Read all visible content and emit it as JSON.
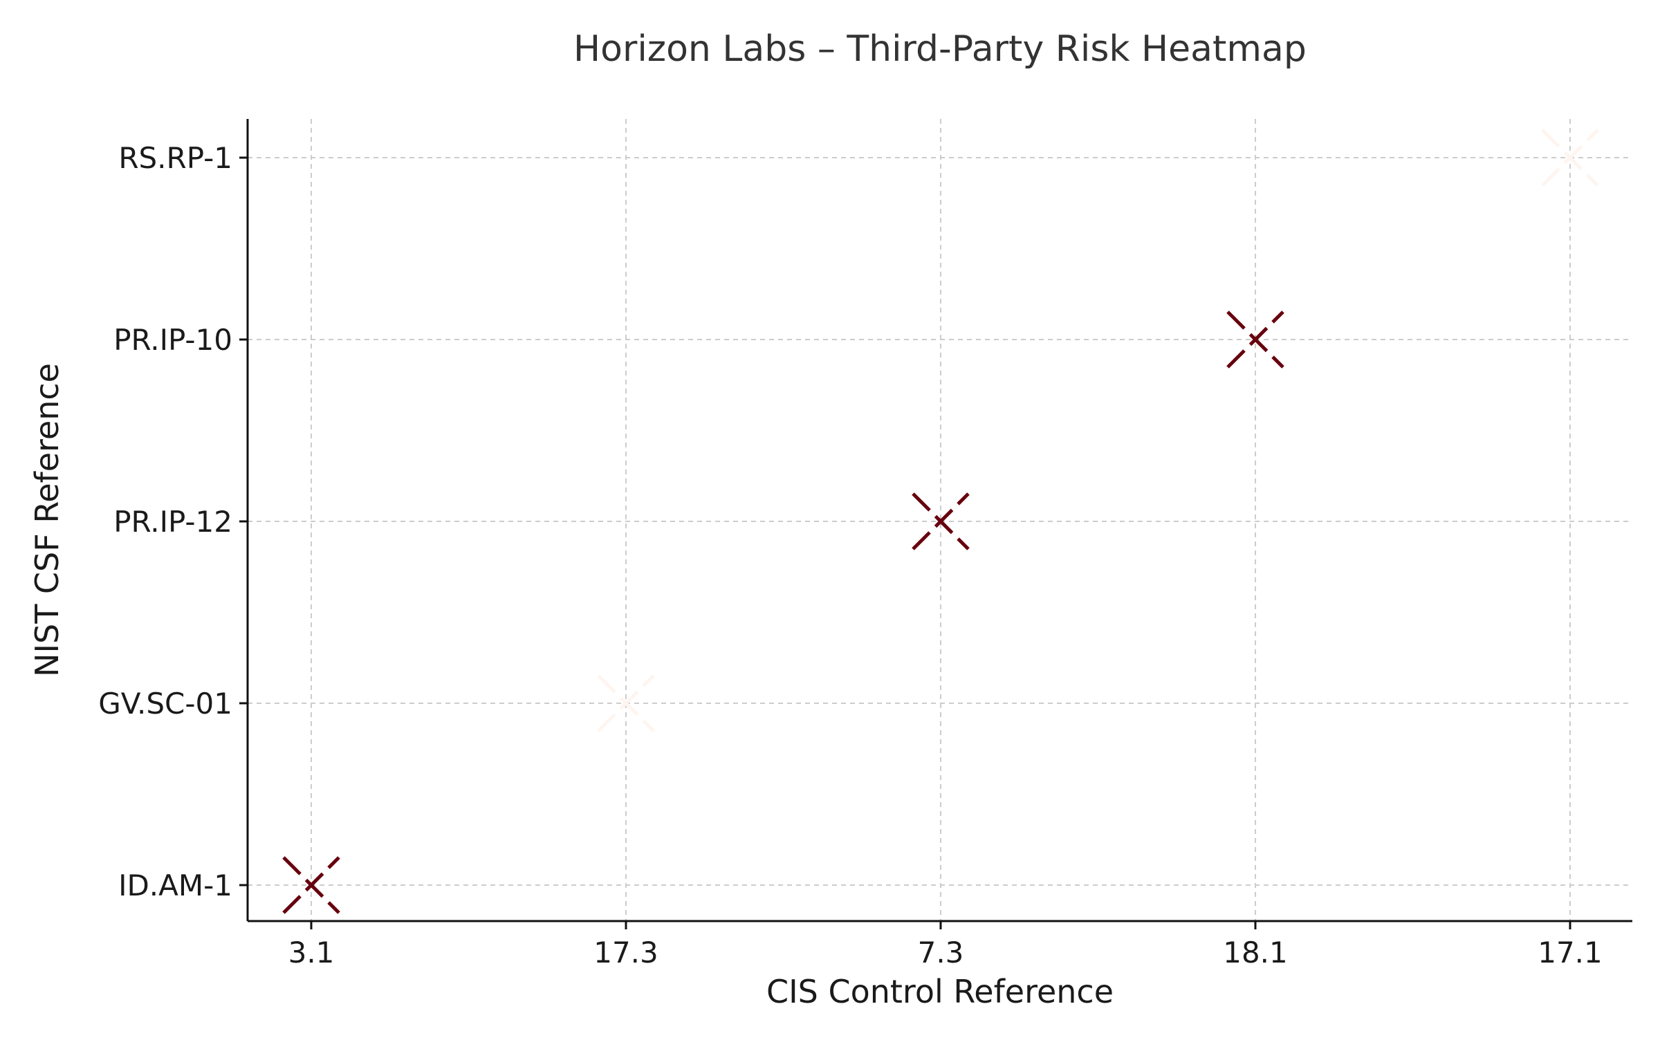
{
  "chart_data": {
    "type": "scatter",
    "title": "Horizon Labs – Third-Party Risk Heatmap",
    "xlabel": "CIS Control Reference",
    "ylabel": "NIST CSF Reference",
    "x_categories": [
      "3.1",
      "17.3",
      "7.3",
      "18.1",
      "17.1"
    ],
    "y_categories": [
      "ID.AM-1",
      "GV.SC-01",
      "PR.IP-12",
      "PR.IP-10",
      "RS.RP-1"
    ],
    "grid": true,
    "marker": "x",
    "points": [
      {
        "x": "3.1",
        "y": "ID.AM-1",
        "color": "#67000d"
      },
      {
        "x": "17.3",
        "y": "GV.SC-01",
        "color": "#fff5f0"
      },
      {
        "x": "7.3",
        "y": "PR.IP-12",
        "color": "#67000d"
      },
      {
        "x": "18.1",
        "y": "PR.IP-10",
        "color": "#67000d"
      },
      {
        "x": "17.1",
        "y": "RS.RP-1",
        "color": "#fff5f0"
      }
    ]
  }
}
